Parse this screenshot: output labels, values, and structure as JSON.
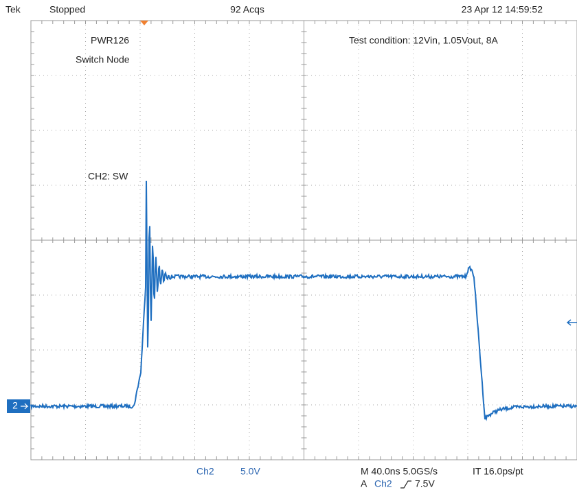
{
  "header": {
    "brand": "Tek",
    "status": "Stopped",
    "acquisitions": "92 Acqs",
    "timestamp": "23 Apr 12 14:59:52"
  },
  "annotations": {
    "board": "PWR126",
    "node": "Switch Node",
    "condition": "Test condition: 12Vin, 1.05Vout, 8A",
    "channel_label": "CH2: SW"
  },
  "channel_marker": "2",
  "footer": {
    "channel": "Ch2",
    "scale": "5.0V",
    "timebase": "M 40.0ns 5.0GS/s",
    "resolution": "IT 16.0ps/pt",
    "trigger_mode": "A",
    "trigger_source": "Ch2",
    "trigger_level": "7.5V"
  }
}
